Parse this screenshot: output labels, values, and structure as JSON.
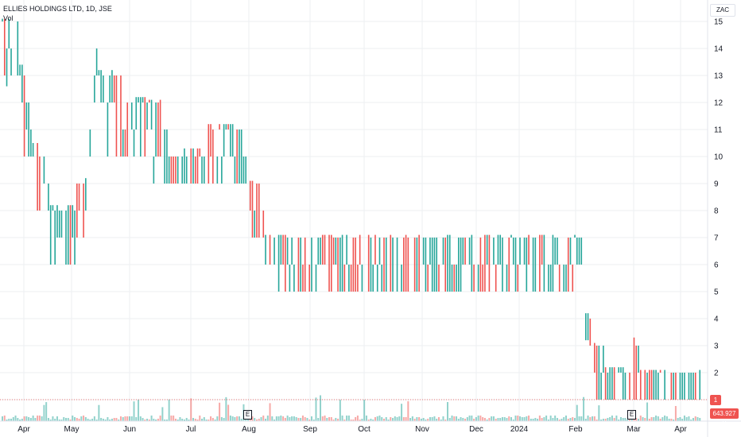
{
  "header": {
    "symbol": "ELLIES HOLDINGS LTD, 1D, JSE",
    "volume_label": "Vol"
  },
  "axis": {
    "currency": "ZAC",
    "volume_value": "643.927 K",
    "last_price": "1",
    "earnings_marker": "E"
  },
  "colors": {
    "up": "#26a69a",
    "down": "#ef5350",
    "grid": "#eceff2"
  },
  "chart_data": {
    "type": "bar",
    "style": "ohlc-bars-with-volume",
    "x_labels": [
      "Apr",
      "May",
      "Jun",
      "Jul",
      "Aug",
      "Sep",
      "Oct",
      "Nov",
      "Dec",
      "2024",
      "Feb",
      "Mar",
      "Apr"
    ],
    "y_ticks": [
      1,
      2,
      3,
      4,
      5,
      6,
      7,
      8,
      9,
      10,
      11,
      12,
      13,
      14,
      15
    ],
    "ylim": [
      0.6,
      15.3
    ],
    "grid": true,
    "legend": "none",
    "segments": [
      {
        "count": 8,
        "start": 15,
        "end": 13,
        "low": 12.6,
        "high": 15.1
      },
      {
        "count": 6,
        "start": 13,
        "end": 10,
        "low": 10,
        "high": 13.4
      },
      {
        "count": 8,
        "start": 10,
        "end": 8,
        "low": 7,
        "high": 10.5
      },
      {
        "count": 12,
        "start": 8,
        "end": 7,
        "low": 6,
        "high": 8.2
      },
      {
        "count": 6,
        "start": 8,
        "end": 9,
        "low": 7,
        "high": 9.2
      },
      {
        "count": 4,
        "start": 9,
        "end": 13,
        "low": 9,
        "high": 14
      },
      {
        "count": 12,
        "start": 13,
        "end": 11,
        "low": 10,
        "high": 13.2
      },
      {
        "count": 10,
        "start": 11,
        "end": 12,
        "low": 10,
        "high": 12.2
      },
      {
        "count": 14,
        "start": 12,
        "end": 9,
        "low": 9,
        "high": 12.1
      },
      {
        "count": 14,
        "start": 9,
        "end": 10,
        "low": 9,
        "high": 10.3
      },
      {
        "count": 10,
        "start": 10,
        "end": 11,
        "low": 9,
        "high": 11.2
      },
      {
        "count": 8,
        "start": 11,
        "end": 9,
        "low": 9,
        "high": 11.2
      },
      {
        "count": 8,
        "start": 9,
        "end": 7,
        "low": 7,
        "high": 9.1
      },
      {
        "count": 20,
        "start": 7,
        "end": 6,
        "low": 5,
        "high": 7.1
      },
      {
        "count": 125,
        "start": 6,
        "end": 6,
        "low": 5,
        "high": 7.1
      },
      {
        "count": 4,
        "start": 6,
        "end": 4,
        "low": 1,
        "high": 4.2
      },
      {
        "count": 6,
        "start": 3,
        "end": 2,
        "low": 1,
        "high": 3.1
      },
      {
        "count": 12,
        "start": 2,
        "end": 2,
        "low": 1,
        "high": 2.2
      },
      {
        "count": 4,
        "start": 2,
        "end": 2,
        "low": 1,
        "high": 3.3
      },
      {
        "count": 28,
        "start": 2,
        "end": 1,
        "low": 1,
        "high": 2.1
      }
    ]
  }
}
